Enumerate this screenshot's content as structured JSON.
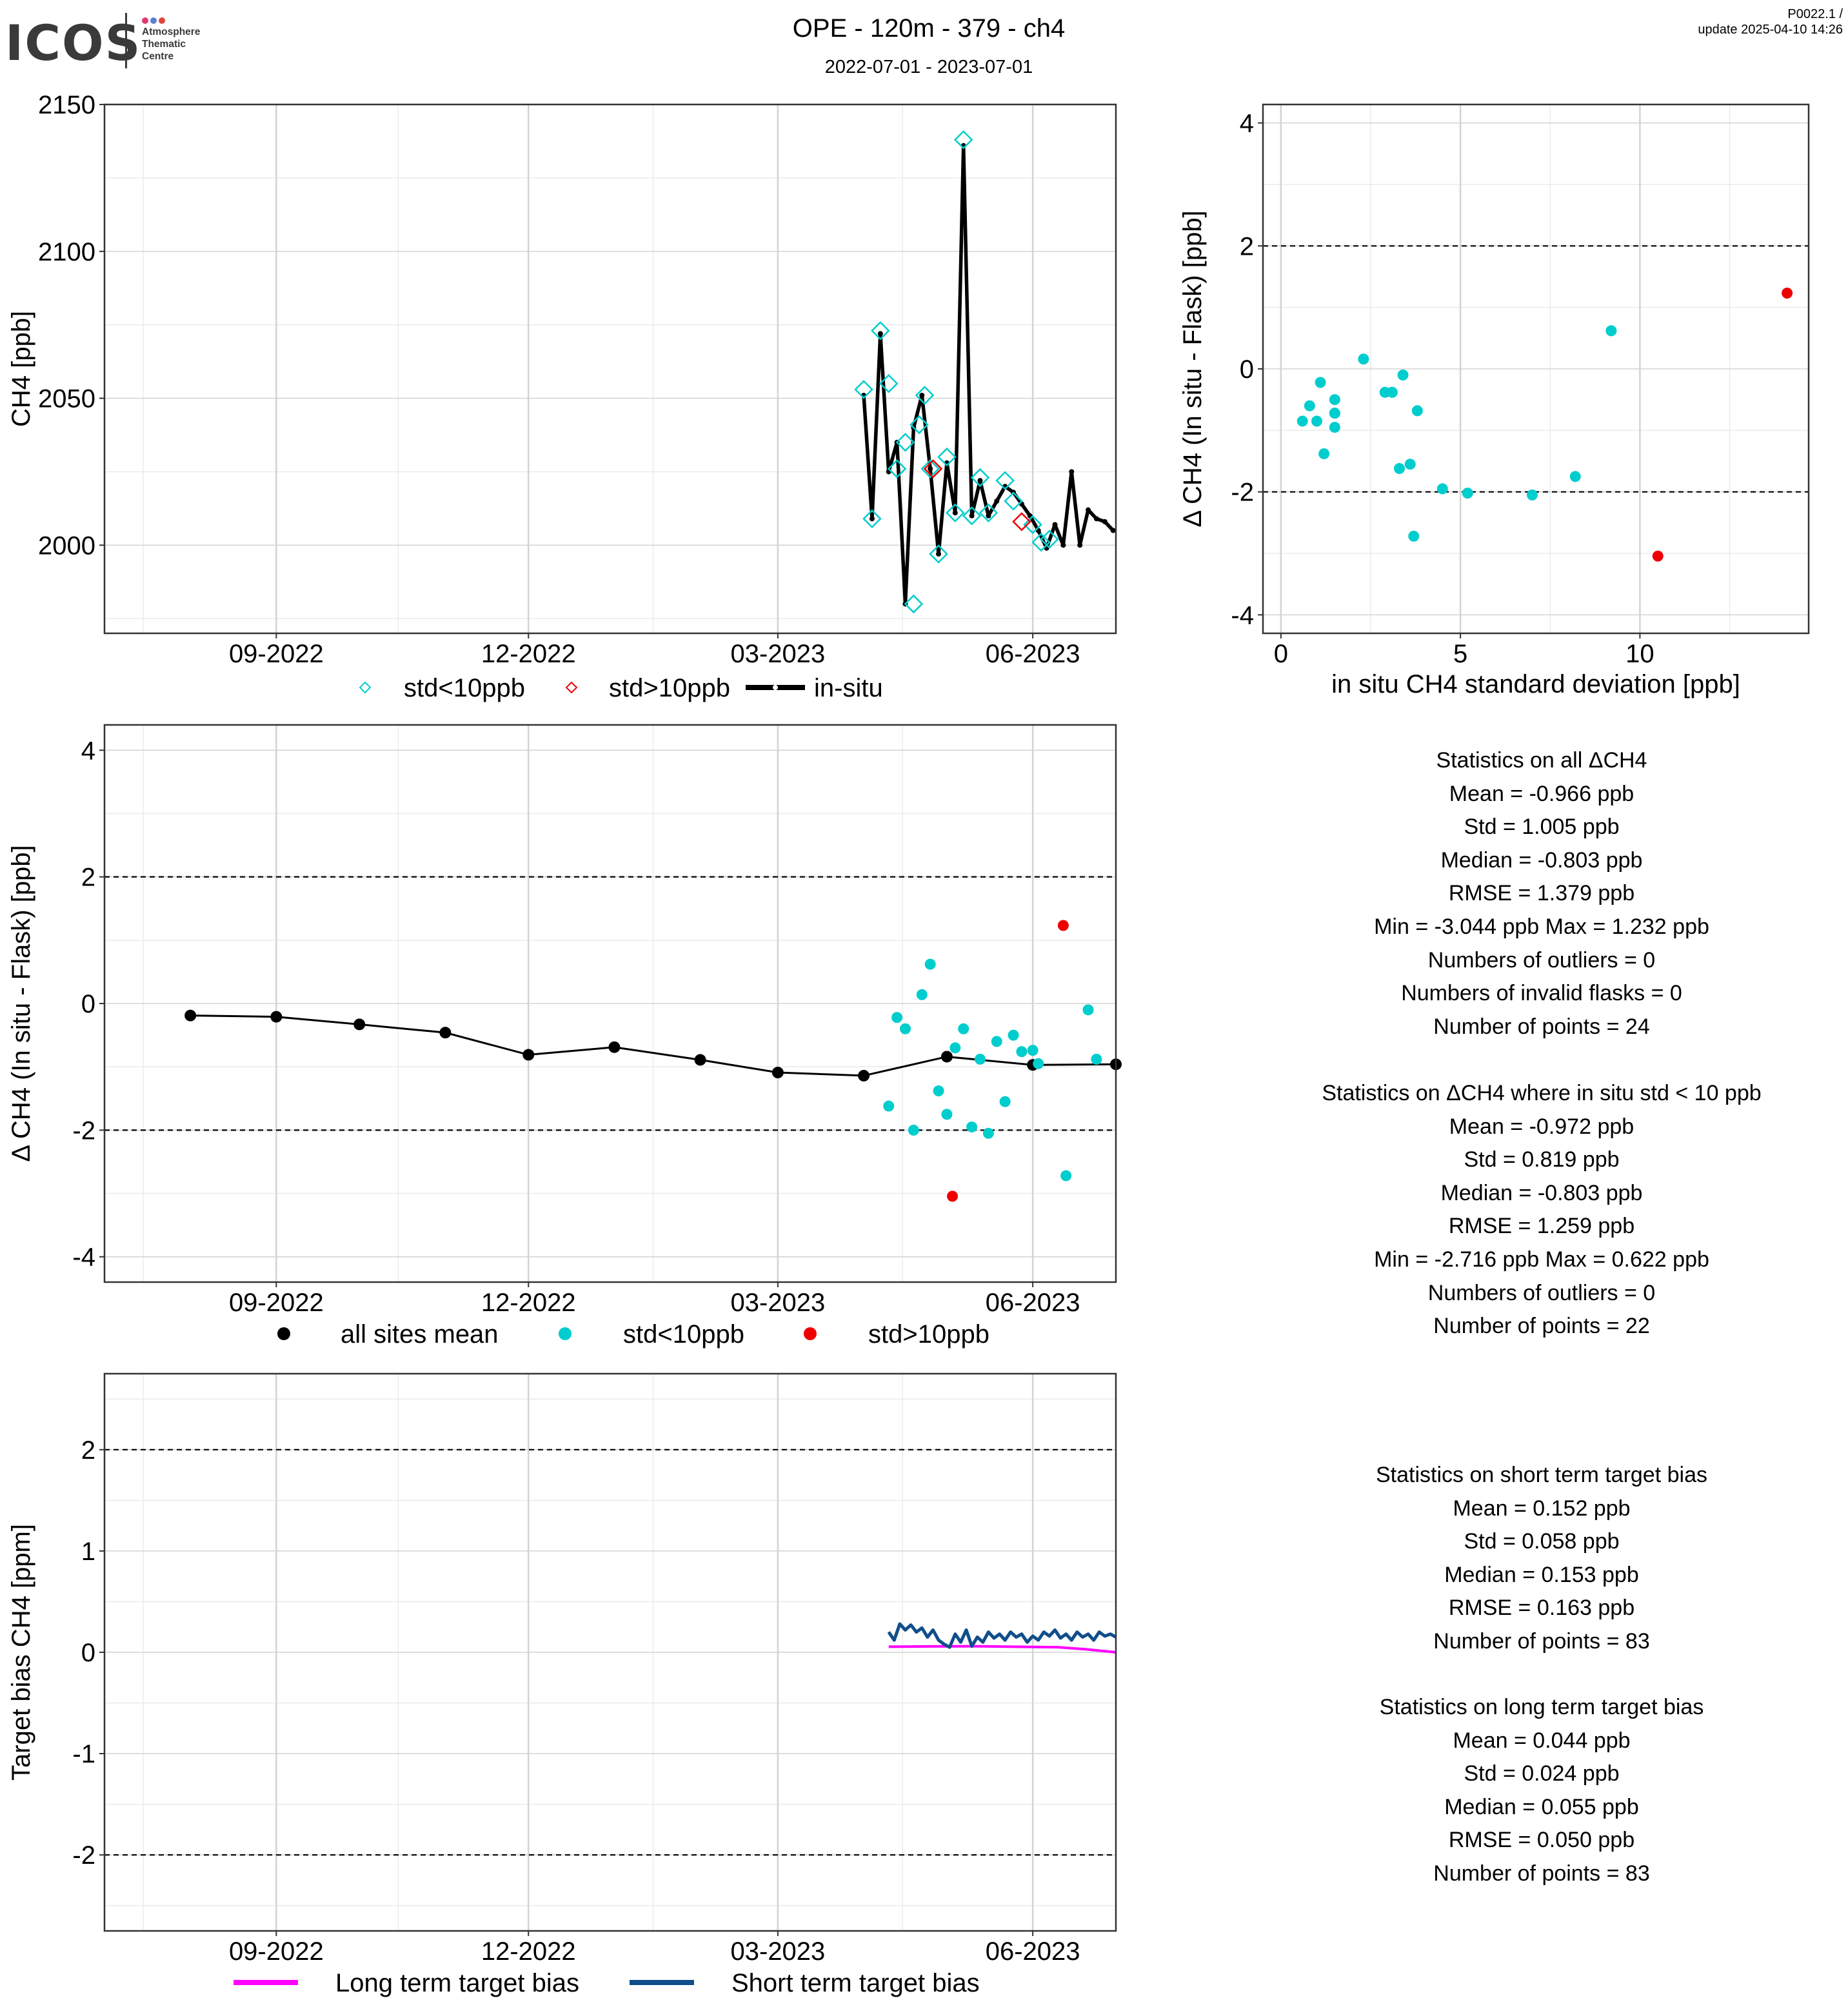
{
  "logo": {
    "text": "ICOS",
    "lines": [
      "Atmosphere",
      "Thematic",
      "Centre"
    ],
    "dot_colors": [
      "#e5396e",
      "#5b7fd6",
      "#e0463c"
    ]
  },
  "header": {
    "title": "OPE - 120m - 379 - ch4",
    "subtitle": "2022-07-01 - 2023-07-01",
    "corner_line1": "P0022.1 /",
    "corner_line2": "update  2025-04-10 14:26"
  },
  "colors": {
    "cyan": "#00cdcd",
    "red": "#ee0000",
    "black": "#000000",
    "magenta": "#ff00ff",
    "navy": "#104e8b",
    "grid_major": "#d3d3d3",
    "grid_minor": "#ebebeb"
  },
  "chart_data": [
    {
      "id": "timeseries",
      "type": "line",
      "xlabel": "",
      "ylabel": "CH4 [ppb]",
      "xlim": [
        "2022-07-01",
        "2023-07-01"
      ],
      "ylim": [
        1970,
        2150
      ],
      "xticks": [
        "2022-09-01",
        "2022-12-01",
        "2023-03-01",
        "2023-06-01"
      ],
      "xtick_labels": [
        "09-2022",
        "12-2022",
        "03-2023",
        "06-2023"
      ],
      "yticks": [
        2000,
        2050,
        2100,
        2150
      ],
      "legend": [
        "std<10ppb",
        "std>10ppb",
        "in-situ"
      ],
      "legend_position": "bottom",
      "series": [
        {
          "name": "in-situ",
          "kind": "line",
          "x": [
            "2023-04-01",
            "2023-04-04",
            "2023-04-07",
            "2023-04-10",
            "2023-04-13",
            "2023-04-16",
            "2023-04-19",
            "2023-04-22",
            "2023-04-25",
            "2023-04-28",
            "2023-05-01",
            "2023-05-04",
            "2023-05-07",
            "2023-05-10",
            "2023-05-13",
            "2023-05-16",
            "2023-05-19",
            "2023-05-22",
            "2023-05-25",
            "2023-05-28",
            "2023-05-31",
            "2023-06-03",
            "2023-06-06",
            "2023-06-09",
            "2023-06-12",
            "2023-06-15",
            "2023-06-18",
            "2023-06-21",
            "2023-06-24",
            "2023-06-27",
            "2023-06-30"
          ],
          "values": [
            2051,
            2009,
            2072,
            2025,
            2035,
            1980,
            2040,
            2051,
            2026,
            1997,
            2028,
            2011,
            2136,
            2010,
            2022,
            2010,
            2015,
            2020,
            2018,
            2014,
            2010,
            2005,
            1999,
            2007,
            2000,
            2025,
            2000,
            2012,
            2009,
            2008,
            2005
          ]
        },
        {
          "name": "std<10ppb",
          "kind": "diamond",
          "x": [
            "2023-04-01",
            "2023-04-04",
            "2023-04-07",
            "2023-04-10",
            "2023-04-13",
            "2023-04-16",
            "2023-04-19",
            "2023-04-21",
            "2023-04-23",
            "2023-04-25",
            "2023-04-28",
            "2023-05-01",
            "2023-05-04",
            "2023-05-07",
            "2023-05-10",
            "2023-05-13",
            "2023-05-16",
            "2023-05-22",
            "2023-05-25",
            "2023-06-01",
            "2023-06-04",
            "2023-06-07"
          ],
          "values": [
            2053,
            2009,
            2073,
            2055,
            2026,
            2035,
            1980,
            2041,
            2051,
            2026,
            1997,
            2030,
            2011,
            2138,
            2010,
            2023,
            2011,
            2022,
            2015,
            2007,
            2001,
            2002
          ]
        },
        {
          "name": "std>10ppb",
          "kind": "diamond",
          "x": [
            "2023-04-26",
            "2023-05-28"
          ],
          "values": [
            2026,
            2008
          ]
        }
      ]
    },
    {
      "id": "scatter",
      "type": "scatter",
      "xlabel": "in situ CH4 standard deviation [ppb]",
      "ylabel": "Δ CH4 (In situ - Flask) [ppb]",
      "xlim": [
        -0.5,
        14.7
      ],
      "ylim": [
        -4.3,
        4.3
      ],
      "xticks": [
        0,
        5,
        10
      ],
      "yticks": [
        -4,
        -2,
        0,
        2,
        4
      ],
      "hlines": [
        2,
        -2
      ],
      "series": [
        {
          "name": "std<10ppb",
          "x": [
            0.6,
            0.8,
            1.0,
            1.1,
            1.2,
            1.5,
            1.5,
            1.5,
            1.5,
            2.3,
            2.9,
            3.1,
            3.3,
            3.4,
            3.6,
            3.7,
            3.8,
            4.5,
            5.2,
            7.0,
            8.2,
            9.2
          ],
          "y": [
            -0.85,
            -0.6,
            -0.85,
            -0.22,
            -1.38,
            -0.5,
            -0.72,
            -0.95,
            -0.72,
            0.16,
            -0.38,
            -0.38,
            -1.62,
            -0.1,
            -1.55,
            -2.72,
            -0.68,
            -1.95,
            -2.02,
            -2.05,
            -1.75,
            0.62
          ]
        },
        {
          "name": "std>10ppb",
          "x": [
            10.5,
            14.1
          ],
          "y": [
            -3.044,
            1.232
          ]
        }
      ]
    },
    {
      "id": "delta",
      "type": "scatter",
      "xlabel": "",
      "ylabel": "Δ CH4 (In situ - Flask) [ppb]",
      "xlim": [
        "2022-07-01",
        "2023-07-01"
      ],
      "ylim": [
        -4.4,
        4.4
      ],
      "xticks": [
        "2022-09-01",
        "2022-12-01",
        "2023-03-01",
        "2023-06-01"
      ],
      "xtick_labels": [
        "09-2022",
        "12-2022",
        "03-2023",
        "06-2023"
      ],
      "yticks": [
        -4,
        -2,
        0,
        2,
        4
      ],
      "hlines": [
        2,
        -2
      ],
      "legend": [
        "all sites mean",
        "std<10ppb",
        "std>10ppb"
      ],
      "legend_position": "bottom",
      "series": [
        {
          "name": "all sites mean",
          "x": [
            "2022-08-01",
            "2022-09-01",
            "2022-10-01",
            "2022-11-01",
            "2022-12-01",
            "2023-01-01",
            "2023-02-01",
            "2023-03-01",
            "2023-04-01",
            "2023-05-01",
            "2023-06-01",
            "2023-07-01"
          ],
          "y": [
            -0.19,
            -0.21,
            -0.33,
            -0.46,
            -0.81,
            -0.69,
            -0.89,
            -1.09,
            -1.14,
            -0.84,
            -0.97,
            -0.96
          ]
        },
        {
          "name": "std<10ppb",
          "x": [
            "2023-04-10",
            "2023-04-13",
            "2023-04-16",
            "2023-04-19",
            "2023-04-22",
            "2023-04-25",
            "2023-04-28",
            "2023-05-01",
            "2023-05-04",
            "2023-05-07",
            "2023-05-10",
            "2023-05-13",
            "2023-05-16",
            "2023-05-19",
            "2023-05-22",
            "2023-05-25",
            "2023-05-28",
            "2023-06-01",
            "2023-06-03",
            "2023-06-13",
            "2023-06-21",
            "2023-06-24"
          ],
          "y": [
            -1.62,
            -0.22,
            -0.4,
            -2.0,
            0.14,
            0.62,
            -1.38,
            -1.75,
            -0.7,
            -0.4,
            -1.95,
            -0.88,
            -2.05,
            -0.6,
            -1.55,
            -0.5,
            -0.76,
            -0.74,
            -0.95,
            -2.72,
            -0.1,
            -0.88
          ]
        },
        {
          "name": "std>10ppb",
          "x": [
            "2023-05-03",
            "2023-06-12"
          ],
          "y": [
            -3.044,
            1.232
          ]
        }
      ]
    },
    {
      "id": "bias",
      "type": "line",
      "xlabel": "",
      "ylabel": "Target bias CH4 [ppm]",
      "xlim": [
        "2022-07-01",
        "2023-07-01"
      ],
      "ylim": [
        -2.75,
        2.75
      ],
      "xticks": [
        "2022-09-01",
        "2022-12-01",
        "2023-03-01",
        "2023-06-01"
      ],
      "xtick_labels": [
        "09-2022",
        "12-2022",
        "03-2023",
        "06-2023"
      ],
      "yticks": [
        -2,
        -1,
        0,
        1,
        2
      ],
      "hlines": [
        2,
        -2
      ],
      "legend": [
        "Long term target bias",
        "Short term target bias"
      ],
      "legend_position": "bottom",
      "series": [
        {
          "name": "Long term target bias",
          "x": [
            "2023-04-10",
            "2023-04-25",
            "2023-05-10",
            "2023-05-25",
            "2023-06-10",
            "2023-06-20",
            "2023-07-01"
          ],
          "y": [
            0.055,
            0.058,
            0.06,
            0.055,
            0.05,
            0.03,
            0.0
          ]
        },
        {
          "name": "Short term target bias",
          "x": [
            "2023-04-10",
            "2023-04-12",
            "2023-04-14",
            "2023-04-16",
            "2023-04-18",
            "2023-04-20",
            "2023-04-22",
            "2023-04-24",
            "2023-04-26",
            "2023-04-28",
            "2023-04-30",
            "2023-05-02",
            "2023-05-04",
            "2023-05-06",
            "2023-05-08",
            "2023-05-10",
            "2023-05-12",
            "2023-05-14",
            "2023-05-16",
            "2023-05-18",
            "2023-05-20",
            "2023-05-22",
            "2023-05-24",
            "2023-05-26",
            "2023-05-28",
            "2023-05-30",
            "2023-06-01",
            "2023-06-03",
            "2023-06-05",
            "2023-06-07",
            "2023-06-09",
            "2023-06-11",
            "2023-06-13",
            "2023-06-15",
            "2023-06-17",
            "2023-06-19",
            "2023-06-21",
            "2023-06-23",
            "2023-06-25",
            "2023-06-27",
            "2023-06-29",
            "2023-07-01"
          ],
          "y": [
            0.2,
            0.12,
            0.28,
            0.22,
            0.27,
            0.2,
            0.24,
            0.15,
            0.22,
            0.12,
            0.08,
            0.05,
            0.18,
            0.1,
            0.22,
            0.06,
            0.15,
            0.1,
            0.2,
            0.14,
            0.18,
            0.12,
            0.2,
            0.15,
            0.18,
            0.1,
            0.16,
            0.12,
            0.2,
            0.16,
            0.22,
            0.14,
            0.18,
            0.12,
            0.2,
            0.15,
            0.18,
            0.12,
            0.2,
            0.16,
            0.18,
            0.15
          ]
        }
      ]
    }
  ],
  "stats": [
    {
      "title": "Statistics on all ΔCH4",
      "lines": [
        "Mean =  -0.966 ppb",
        "Std =  1.005 ppb",
        "Median =  -0.803 ppb",
        "RMSE =  1.379 ppb",
        "Min =  -3.044 ppb Max =  1.232 ppb",
        "Numbers of outliers =  0",
        "Numbers of invalid flasks =  0",
        "Number of points =  24"
      ]
    },
    {
      "title": "Statistics on ΔCH4 where in situ std < 10 ppb",
      "lines": [
        "Mean =  -0.972 ppb",
        "Std =  0.819 ppb",
        "Median =  -0.803 ppb",
        "RMSE =  1.259 ppb",
        "Min =  -2.716 ppb Max =  0.622 ppb",
        "Numbers of outliers =  0",
        "Number of points =  22"
      ]
    },
    {
      "title": "Statistics on short term target bias",
      "lines": [
        "Mean =  0.152 ppb",
        "Std =  0.058 ppb",
        "Median =  0.153 ppb",
        "RMSE =  0.163 ppb",
        "Number of points =  83"
      ]
    },
    {
      "title": "Statistics on long term target bias",
      "lines": [
        "Mean =  0.044 ppb",
        "Std =  0.024 ppb",
        "Median =  0.055 ppb",
        "RMSE =  0.050 ppb",
        "Number of points =  83"
      ]
    }
  ]
}
